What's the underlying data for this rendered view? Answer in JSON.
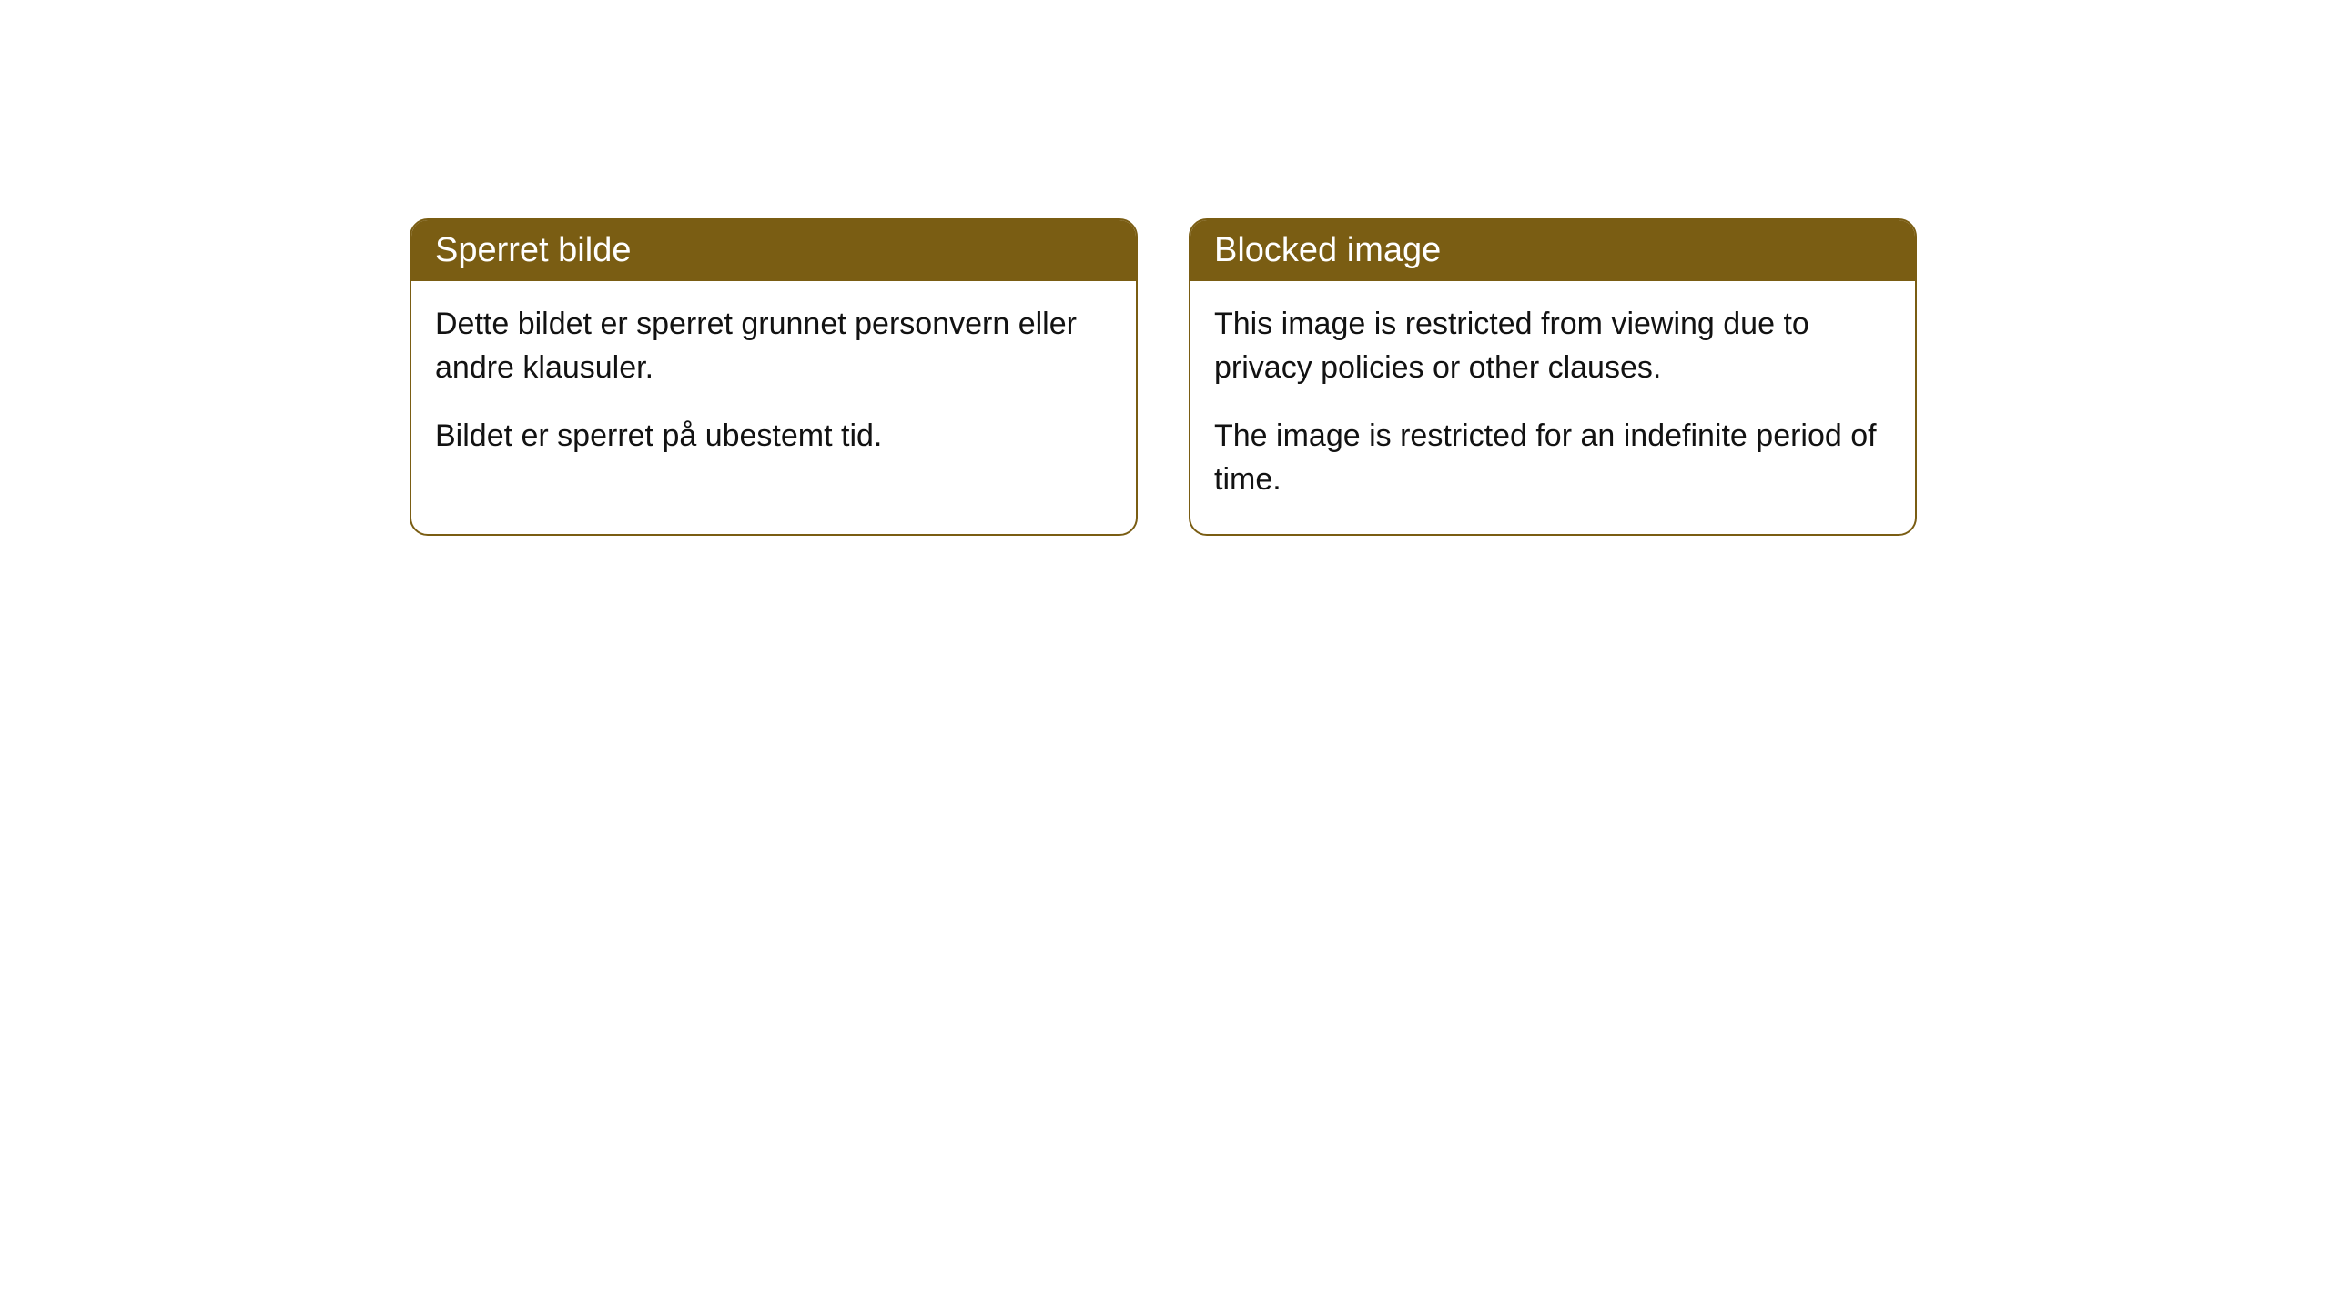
{
  "cards": [
    {
      "title": "Sperret bilde",
      "paragraph1": "Dette bildet er sperret grunnet personvern eller andre klausuler.",
      "paragraph2": "Bildet er sperret på ubestemt tid."
    },
    {
      "title": "Blocked image",
      "paragraph1": "This image is restricted from viewing due to privacy policies or other clauses.",
      "paragraph2": "The image is restricted for an indefinite period of time."
    }
  ],
  "style": {
    "header_bg_color": "#7a5d13",
    "header_text_color": "#ffffff",
    "border_color": "#7a5d13",
    "body_text_color": "#121212",
    "background_color": "#ffffff",
    "border_radius": 20,
    "header_fontsize": 38,
    "body_fontsize": 34
  }
}
